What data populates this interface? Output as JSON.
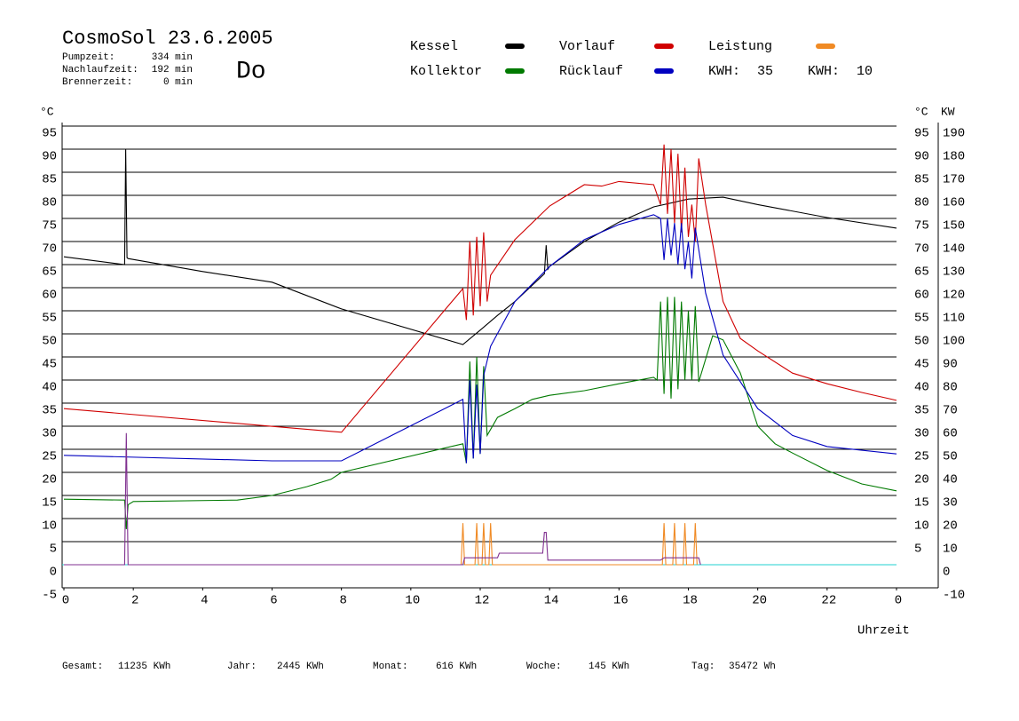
{
  "chart_data": {
    "type": "line",
    "title": "CosmoSol 23.6.2005",
    "weekday": "Do",
    "weekday_color": "#1f1fd0",
    "info": [
      {
        "label": "Pumpzeit:",
        "value": "334 min"
      },
      {
        "label": "Nachlaufzeit:",
        "value": "192 min"
      },
      {
        "label": "Brennerzeit:",
        "value": "0 min"
      }
    ],
    "kwh": [
      {
        "label": "KWH:",
        "value": 35,
        "color": "#e0902c"
      },
      {
        "label": "KWH:",
        "value": 10,
        "color": "#803090"
      }
    ],
    "y_axis_label": "°C",
    "y_right_axis_label": "°C",
    "y2_axis_label": "KW",
    "y2_color": "#e0902c",
    "x_axis_label": "Uhrzeit",
    "xlim": [
      0,
      24
    ],
    "xticks": [
      0,
      2,
      4,
      6,
      8,
      10,
      12,
      14,
      16,
      18,
      20,
      22,
      {
        "value": 24,
        "label": "0"
      }
    ],
    "ylim": [
      -5,
      95
    ],
    "yticks": [
      -5,
      0,
      5,
      10,
      15,
      20,
      25,
      30,
      35,
      40,
      45,
      50,
      55,
      60,
      65,
      70,
      75,
      80,
      85,
      90,
      95
    ],
    "yticks_right": [
      5,
      10,
      15,
      20,
      25,
      30,
      35,
      40,
      45,
      50,
      55,
      60,
      65,
      70,
      75,
      80,
      85,
      90,
      95
    ],
    "y2lim": [
      -10,
      190
    ],
    "y2ticks": [
      -10,
      0,
      10,
      20,
      30,
      40,
      50,
      60,
      70,
      80,
      90,
      100,
      110,
      120,
      130,
      140,
      150,
      160,
      170,
      180,
      190
    ],
    "grid": true,
    "zero_line_color": "#20d0d0",
    "series": [
      {
        "name": "Kessel",
        "color": "#000000",
        "x": [
          0,
          1.75,
          1.78,
          1.82,
          1.85,
          4,
          6,
          8,
          11.5,
          12,
          12.5,
          13,
          13.85,
          13.9,
          13.95,
          14,
          15,
          16,
          17,
          18,
          19,
          20,
          22,
          24
        ],
        "values": [
          66.7,
          65,
          90,
          66.5,
          66.3,
          63.5,
          61.2,
          55.4,
          47.7,
          50.8,
          54,
          57,
          63,
          69.2,
          64,
          64.6,
          70,
          74.2,
          77.5,
          79.2,
          79.6,
          78,
          75.2,
          72.9
        ]
      },
      {
        "name": "Kollektor",
        "color": "#007a00",
        "x": [
          0,
          1.75,
          1.8,
          1.85,
          2,
          5,
          6,
          7,
          7.7,
          8,
          11.5,
          11.6,
          11.7,
          11.8,
          11.9,
          12,
          12.1,
          12.2,
          12.5,
          13,
          13.5,
          14,
          15,
          16,
          17,
          17.1,
          17.2,
          17.3,
          17.4,
          17.5,
          17.6,
          17.7,
          17.8,
          17.9,
          18,
          18.1,
          18.2,
          18.3,
          18.7,
          19,
          19.5,
          20,
          20.5,
          21,
          22,
          23,
          24
        ],
        "values": [
          14.2,
          14,
          7.7,
          13,
          13.7,
          14,
          15,
          16.9,
          18.5,
          20,
          26.2,
          22,
          44,
          23,
          45,
          24,
          43,
          28,
          31.9,
          33.8,
          35.8,
          36.7,
          37.7,
          39.2,
          40.6,
          40,
          57,
          37,
          58,
          36,
          58,
          38,
          57,
          40,
          55,
          40,
          56,
          39.6,
          49.6,
          48.7,
          41.5,
          30,
          26.2,
          24.2,
          20.4,
          17.5,
          16
        ]
      },
      {
        "name": "Vorlauf",
        "color": "#d00000",
        "x": [
          0,
          8,
          11.5,
          11.6,
          11.7,
          11.8,
          11.9,
          12,
          12.1,
          12.2,
          12.3,
          13,
          14,
          15,
          15.5,
          16,
          17,
          17.2,
          17.3,
          17.4,
          17.5,
          17.6,
          17.7,
          17.8,
          17.9,
          18,
          18.1,
          18.2,
          18.3,
          18.5,
          19,
          19.5,
          20,
          21,
          22,
          23,
          24
        ],
        "values": [
          33.8,
          28.7,
          59.8,
          53,
          70,
          54,
          71,
          56,
          72,
          57,
          62.7,
          70.4,
          77.7,
          82.3,
          82,
          83,
          82.3,
          78,
          91,
          76,
          90,
          74,
          89,
          72,
          86,
          71,
          78,
          70,
          88,
          78,
          57,
          49,
          46.3,
          41.5,
          39.2,
          37.3,
          35.6
        ]
      },
      {
        "name": "Rücklauf",
        "color": "#0000c0",
        "x": [
          0,
          6,
          8,
          11.5,
          11.6,
          11.7,
          11.8,
          11.9,
          12,
          12.1,
          12.3,
          13,
          14,
          15,
          16,
          17,
          17.2,
          17.3,
          17.4,
          17.5,
          17.6,
          17.7,
          17.8,
          17.9,
          18,
          18.1,
          18.2,
          18.5,
          19,
          20,
          21,
          22,
          24
        ],
        "values": [
          23.7,
          22.5,
          22.5,
          35.8,
          22,
          40,
          23,
          39,
          24,
          41,
          47.3,
          57,
          64.6,
          70.4,
          73.7,
          75.8,
          75,
          66,
          75,
          67,
          74,
          65,
          74,
          64,
          70,
          62,
          73,
          58.8,
          45.4,
          33.8,
          28,
          25.6,
          24
        ]
      },
      {
        "name": "Leistung",
        "color": "#f08a24",
        "axis": "y2",
        "x": [
          11.45,
          11.5,
          11.55,
          11.85,
          11.9,
          11.95,
          12.05,
          12.1,
          12.15,
          12.25,
          12.3,
          12.35,
          17.25,
          17.3,
          17.35,
          17.55,
          17.6,
          17.65,
          17.85,
          17.9,
          17.95,
          18.15,
          18.2,
          18.25
        ],
        "values": [
          0,
          18,
          0,
          0,
          18,
          0,
          0,
          18,
          0,
          0,
          18,
          0,
          0,
          18,
          0,
          0,
          18,
          0,
          0,
          18,
          0,
          0,
          18,
          0
        ]
      },
      {
        "color": "#803090",
        "axis": "y2",
        "x": [
          0,
          1.75,
          1.8,
          1.85,
          11.5,
          11.55,
          12.5,
          12.55,
          13.8,
          13.85,
          13.9,
          13.95,
          17.2,
          17.3,
          18.3,
          18.35
        ],
        "values": [
          0,
          0,
          57,
          0,
          0,
          3,
          3,
          5,
          5,
          14,
          14,
          2,
          2,
          3,
          3,
          0
        ]
      }
    ],
    "totals": [
      {
        "label": "Gesamt:",
        "value": "11235 KWh"
      },
      {
        "label": "Jahr:",
        "value": "2445 KWh"
      },
      {
        "label": "Monat:",
        "value": "616 KWh"
      },
      {
        "label": "Woche:",
        "value": "145 KWh"
      },
      {
        "label": "Tag:",
        "value": "35472 Wh"
      }
    ]
  }
}
